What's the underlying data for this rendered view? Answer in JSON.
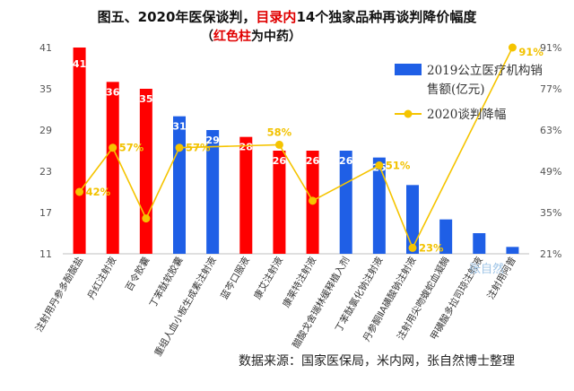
{
  "title": {
    "part1": "图五、2020年医保谈判，",
    "part2": "目录内",
    "part3": "14个独家品种再谈判降价幅度",
    "sub1": "（",
    "sub2": "红色柱",
    "sub3": "为中药）"
  },
  "source_text": "数据来源：国家医保局，米内网，张自然博士整理",
  "watermark_text": "张自然",
  "colors": {
    "tcm": "#ff0000",
    "western": "#1f5fe6",
    "line": "#f5c400"
  },
  "chart_data": {
    "type": "bar",
    "categories": [
      "注射用丹参多酚酸盐",
      "丹红注射液",
      "百令胶囊",
      "丁苯酞软胶囊",
      "重组人血小板生成素注射液",
      "蓝芩口服液",
      "康艾注射液",
      "康莱特注射液",
      "醋酸戈舍瑞林缓释植入剂",
      "丁苯酞氯化钠注射液",
      "丹参酮ⅡA磺酸钠注射液",
      "注射用尖吻蝮蛇血凝酶",
      "甲磺酸多拉司琼注射液",
      "注射用阿普"
    ],
    "series": [
      {
        "name": "2019公立医疗机构销售额(亿元)",
        "axis": "left",
        "values": [
          41,
          36,
          35,
          31,
          29,
          28,
          26,
          26,
          26,
          25,
          21,
          16,
          14,
          12
        ],
        "bar_labels": [
          "41",
          "36",
          "35",
          "31",
          "29",
          "28",
          "26",
          "26",
          "26",
          "25",
          "",
          "",
          "",
          ""
        ],
        "is_tcm": [
          true,
          true,
          true,
          false,
          false,
          true,
          true,
          true,
          false,
          false,
          false,
          false,
          false,
          false
        ]
      },
      {
        "name": "2020谈判降幅",
        "axis": "right",
        "values": [
          42,
          57,
          33,
          57,
          null,
          null,
          58,
          39,
          null,
          51,
          23,
          null,
          null,
          91
        ],
        "point_labels": [
          "42%",
          "57%",
          "",
          "57%",
          "",
          "",
          "58%",
          "",
          "",
          "51%",
          "23%",
          "",
          "",
          "91%"
        ]
      }
    ],
    "y_left": {
      "min": 11,
      "max": 41,
      "ticks": [
        "41",
        "35",
        "29",
        "23",
        "17",
        "11"
      ]
    },
    "y_right": {
      "min": 21,
      "max": 91,
      "ticks": [
        "91%",
        "77%",
        "63%",
        "49%",
        "35%",
        "21%"
      ]
    },
    "grid": false,
    "legend_position": "top-right"
  }
}
